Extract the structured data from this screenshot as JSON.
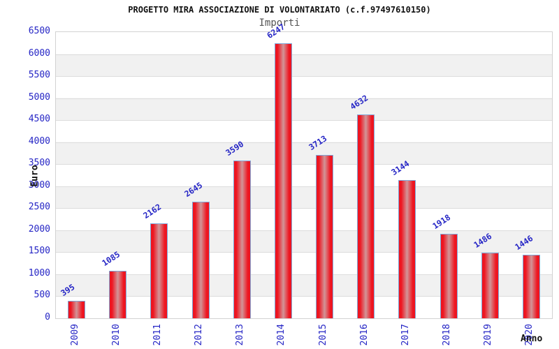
{
  "header": {
    "title": "PROGETTO MIRA ASSOCIAZIONE DI VOLONTARIATO (c.f.97497610150)",
    "subtitle": "Importi"
  },
  "chart_data": {
    "type": "bar",
    "title": "PROGETTO MIRA ASSOCIAZIONE DI VOLONTARIATO (c.f.97497610150)",
    "subtitle": "Importi",
    "xlabel": "Anno",
    "ylabel": "Euro",
    "categories": [
      "2009",
      "2010",
      "2011",
      "2012",
      "2013",
      "2014",
      "2015",
      "2016",
      "2017",
      "2018",
      "2019",
      "2020"
    ],
    "values": [
      395,
      1085,
      2162,
      2645,
      3590,
      6247,
      3713,
      4632,
      3144,
      1918,
      1486,
      1446
    ],
    "ylim": [
      0,
      6500
    ],
    "ytick_step": 500,
    "yticks": [
      0,
      500,
      1000,
      1500,
      2000,
      2500,
      3000,
      3500,
      4000,
      4500,
      5000,
      5500,
      6000,
      6500
    ],
    "grid": true,
    "bands_alternating": true,
    "legend": "none",
    "colors": {
      "bar_edge": "#ee1520",
      "bar_center": "#d29598",
      "bar_border": "#7fa8d9",
      "data_label": "#2525c5",
      "tick_label": "#2525c5",
      "grid_line": "#dcdcdc",
      "band_fill": "#f1f1f1",
      "plot_border": "#d2d2d2",
      "title_color": "#111111",
      "subtitle_color": "#555555"
    }
  }
}
